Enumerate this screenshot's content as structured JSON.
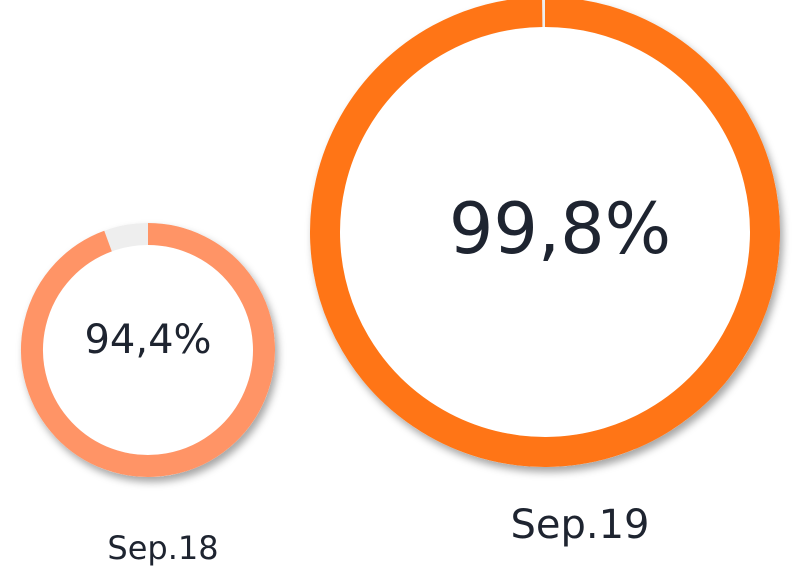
{
  "chart_data": {
    "type": "donut",
    "categories": [
      "Sep.18",
      "Sep.19"
    ],
    "values": [
      94.4,
      99.8
    ],
    "value_labels": [
      "94,4%",
      "99,8%"
    ],
    "colors": [
      "#ff9466",
      "#ff7412"
    ]
  }
}
